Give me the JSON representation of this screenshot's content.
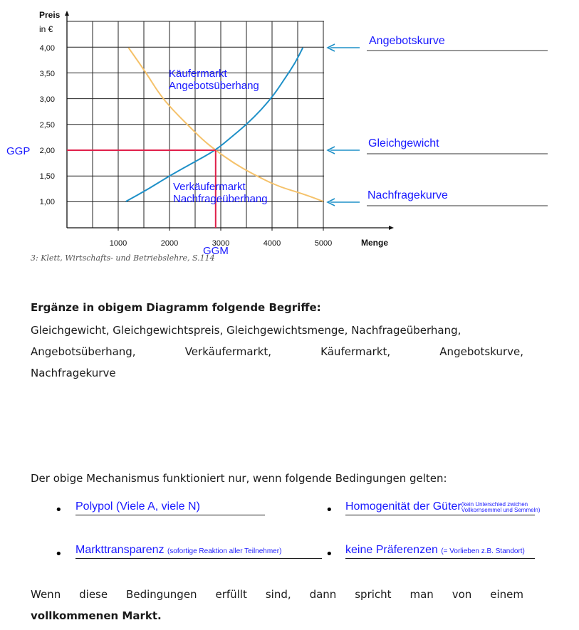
{
  "chart_data": {
    "type": "line",
    "ylabel_top": "Preis",
    "ylabel_unit": "in €",
    "xlabel": "Menge",
    "xlim": [
      0,
      6000
    ],
    "ylim": [
      0.5,
      4.25
    ],
    "x_ticks": [
      1000,
      2000,
      3000,
      4000,
      5000
    ],
    "x_tick_labels": [
      "1000",
      "2000",
      "3000",
      "4000",
      "5000"
    ],
    "y_ticks": [
      1.0,
      1.5,
      2.0,
      2.5,
      3.0,
      3.5,
      4.0
    ],
    "y_tick_labels": [
      "1,00",
      "1,50",
      "2,00",
      "2,50",
      "3,00",
      "3,50",
      "4,00"
    ],
    "grid": true,
    "series": [
      {
        "name": "Angebotskurve",
        "color": "#1e90c8",
        "points": [
          [
            1150,
            1.0
          ],
          [
            1600,
            1.25
          ],
          [
            2000,
            1.5
          ],
          [
            2450,
            1.75
          ],
          [
            2900,
            2.0
          ],
          [
            3200,
            2.25
          ],
          [
            3500,
            2.5
          ],
          [
            3800,
            2.8
          ],
          [
            4050,
            3.1
          ],
          [
            4250,
            3.4
          ],
          [
            4450,
            3.7
          ],
          [
            4600,
            4.0
          ]
        ]
      },
      {
        "name": "Nachfragekurve",
        "color": "#f5c26b",
        "points": [
          [
            1200,
            4.0
          ],
          [
            1550,
            3.5
          ],
          [
            1800,
            3.1
          ],
          [
            2050,
            2.8
          ],
          [
            2350,
            2.5
          ],
          [
            2650,
            2.2
          ],
          [
            2900,
            2.0
          ],
          [
            3250,
            1.75
          ],
          [
            3600,
            1.55
          ],
          [
            4100,
            1.3
          ],
          [
            4600,
            1.15
          ],
          [
            5000,
            1.0
          ]
        ]
      }
    ],
    "equilibrium": {
      "x": 2900,
      "y": 2.0,
      "color": "#e0204a"
    },
    "annotations": {
      "ggp": "GGP",
      "ggm": "GGM",
      "kaeufermarkt": "Käufermarkt",
      "angebotsueberhang": "Angebotsüberhang",
      "verkaeufermarkt": "Verkäufermarkt",
      "nachfrageueberhang": "Nachfrageüberhang",
      "right_labels": [
        "Angebotskurve",
        "Gleichgewicht",
        "Nachfragekurve"
      ]
    },
    "source": "3: Klett, Wirtschafts- und Betriebslehre, S.114"
  },
  "task": {
    "heading": "Ergänze in obigem Diagramm folgende Begriffe:",
    "line1": "Gleichgewicht, Gleichgewichtspreis, Gleichgewichtsmenge, Nachfrageüberhang,",
    "line2_words": [
      "Angebotsüberhang,",
      "Verkäufermarkt,",
      "Käufermarkt,",
      "Angebotskurve,"
    ],
    "line3": "Nachfragekurve"
  },
  "conditions": {
    "intro": "Der obige Mechanismus funktioniert nur, wenn folgende Bedingungen gelten:",
    "c1": "Polypol (Viele A, viele N)",
    "c2_main": "Homogenität der Güter",
    "c2_note1": "(kein Unterschied zwichen",
    "c2_note2": "Vollkornsemmel und Semmeln)",
    "c3_main": "Markttransparenz",
    "c3_note": "(sofortige Reaktion aller Teilnehmer)",
    "c4_main": "keine Präferenzen",
    "c4_note": "(= Vorlieben z.B. Standort)"
  },
  "conclusion": {
    "words": [
      "Wenn",
      "diese",
      "Bedingungen",
      "erfüllt",
      "sind,",
      "dann",
      "spricht",
      "man",
      "von",
      "einem"
    ],
    "bold": "vollkommenen Markt."
  }
}
